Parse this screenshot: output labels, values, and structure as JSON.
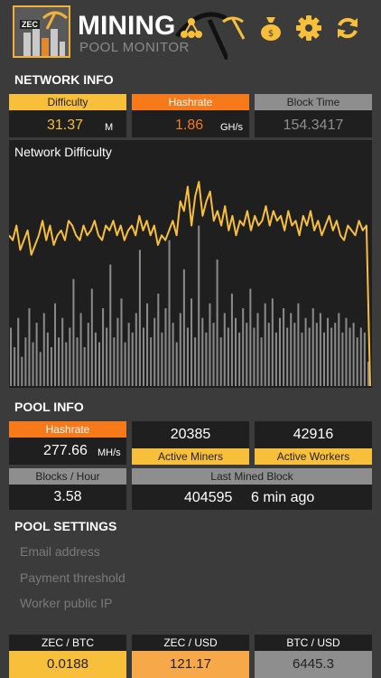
{
  "header": {
    "logo_text": "ZEC",
    "title": "MINING",
    "subtitle": "POOL MONITOR",
    "icons": [
      "network-icon",
      "pickaxe-icon",
      "money-bag-icon",
      "gear-icon",
      "refresh-icon"
    ]
  },
  "network_info": {
    "title": "NETWORK INFO",
    "difficulty": {
      "label": "Difficulty",
      "value": "31.37",
      "unit": "M"
    },
    "hashrate": {
      "label": "Hashrate",
      "value": "1.86",
      "unit": "GH/s"
    },
    "block_time": {
      "label": "Block Time",
      "value": "154.3417"
    }
  },
  "chart_data": {
    "type": "line",
    "title": "Network Difficulty",
    "line_values": [
      31,
      30,
      33,
      28,
      30,
      32,
      27,
      29,
      31,
      34,
      30,
      33,
      29,
      31,
      32,
      30,
      34,
      33,
      31,
      30,
      33,
      31,
      32,
      34,
      31,
      30,
      33,
      32,
      34,
      31,
      33,
      30,
      32,
      33,
      31,
      35,
      32,
      34,
      31,
      33,
      29,
      31,
      30,
      32,
      34,
      31,
      38,
      36,
      41,
      33,
      39,
      42,
      35,
      38,
      40,
      34,
      36,
      33,
      37,
      32,
      35,
      31,
      34,
      33,
      36,
      32,
      35,
      33,
      34,
      37,
      33,
      36,
      34,
      35,
      32,
      36,
      33,
      34,
      31,
      35,
      33,
      36,
      32,
      34,
      31,
      33,
      35,
      32,
      34,
      31,
      30,
      33,
      32,
      31,
      34,
      32,
      33,
      0
    ],
    "bar_values": [
      12,
      8,
      14,
      6,
      10,
      16,
      9,
      13,
      7,
      15,
      11,
      8,
      17,
      10,
      14,
      9,
      12,
      22,
      10,
      15,
      8,
      13,
      20,
      11,
      9,
      16,
      12,
      25,
      10,
      14,
      18,
      9,
      13,
      11,
      15,
      28,
      12,
      17,
      10,
      14,
      19,
      11,
      16,
      30,
      13,
      9,
      15,
      24,
      12,
      18,
      10,
      33,
      14,
      11,
      17,
      13,
      26,
      10,
      15,
      12,
      19,
      14,
      11,
      16,
      13,
      20,
      12,
      15,
      10,
      17,
      13,
      18,
      11,
      14,
      16,
      12,
      15,
      13,
      17,
      11,
      14,
      12,
      16,
      13,
      15,
      11,
      14,
      12,
      13,
      15,
      11,
      14,
      12,
      13,
      10,
      12,
      11,
      5
    ],
    "ylim": [
      0,
      45
    ]
  },
  "pool_info": {
    "title": "POOL INFO",
    "hashrate": {
      "label": "Hashrate",
      "value": "277.66",
      "unit": "MH/s"
    },
    "active_miners": {
      "label": "Active Miners",
      "value": "20385"
    },
    "active_workers": {
      "label": "Active Workers",
      "value": "42916"
    },
    "blocks_per_hour": {
      "label": "Blocks / Hour",
      "value": "3.58"
    },
    "last_mined": {
      "label": "Last Mined Block",
      "block": "404595",
      "ago": "6 min ago"
    }
  },
  "pool_settings": {
    "title": "POOL SETTINGS",
    "email_placeholder": "Email address",
    "threshold_placeholder": "Payment threshold",
    "ip_placeholder": "Worker public IP"
  },
  "tickers": [
    {
      "label": "ZEC / BTC",
      "value": "0.0188",
      "color": "#f8bf3b"
    },
    {
      "label": "ZEC / USD",
      "value": "121.17",
      "color": "#f7a94a"
    },
    {
      "label": "BTC / USD",
      "value": "6445.3",
      "color": "#8e8e8e"
    }
  ],
  "colors": {
    "accent": "#f8bf3b",
    "orange": "#f77a1a",
    "gray": "#8e8e8e"
  }
}
